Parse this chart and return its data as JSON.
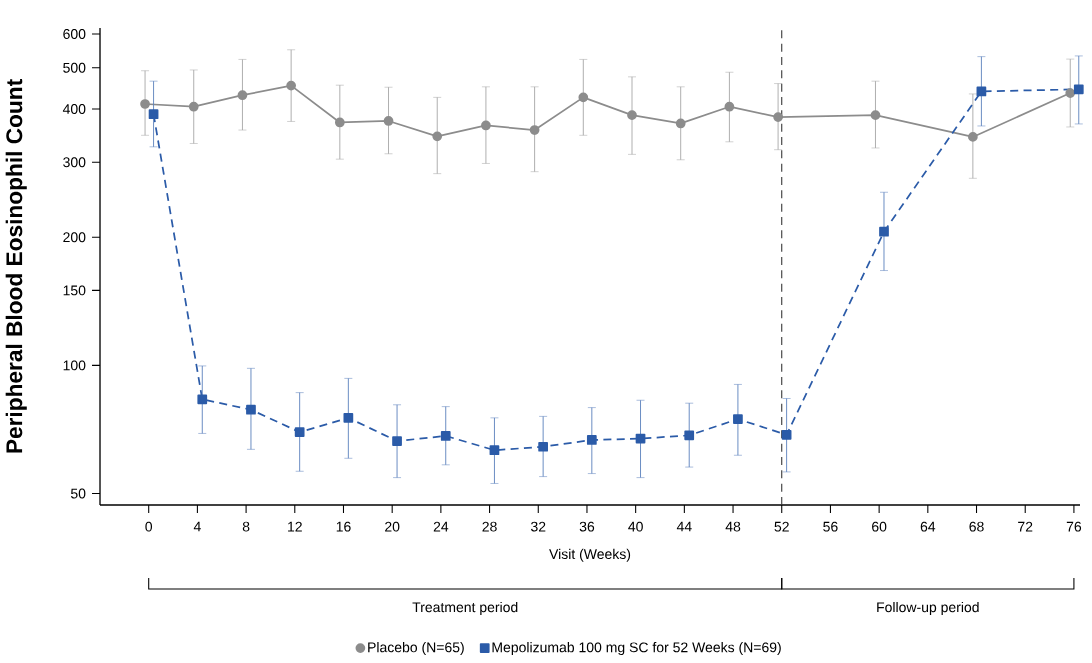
{
  "chart_data": {
    "type": "line",
    "xlabel": "Visit (Weeks)",
    "ylabel": "Peripheral Blood Eosinophil Count",
    "log": "y",
    "xlim": [
      -4,
      76.5
    ],
    "xticks": [
      0,
      4,
      8,
      12,
      16,
      20,
      24,
      28,
      32,
      36,
      40,
      44,
      48,
      52,
      56,
      60,
      64,
      68,
      72,
      76
    ],
    "ylim": [
      47,
      620
    ],
    "yticks": [
      50,
      100,
      150,
      200,
      300,
      400,
      500,
      600
    ],
    "legend": "bottom",
    "series": [
      {
        "name": "Placebo (N=65)",
        "color": "#8c8c8c",
        "marker": "circle",
        "line_style": "solid",
        "x": [
          -0.3,
          3.7,
          7.7,
          11.7,
          15.7,
          19.7,
          23.7,
          27.7,
          31.7,
          35.7,
          39.7,
          43.7,
          47.7,
          51.7,
          59.7,
          67.7,
          75.7
        ],
        "values": [
          411,
          405,
          431,
          454,
          372,
          375,
          345,
          366,
          357,
          426,
          387,
          370,
          405,
          383,
          387,
          344,
          436
        ],
        "errors": [
          [
            347,
            492
          ],
          [
            332,
            494
          ],
          [
            357,
            523
          ],
          [
            374,
            551
          ],
          [
            305,
            455
          ],
          [
            314,
            450
          ],
          [
            282,
            426
          ],
          [
            298,
            451
          ],
          [
            285,
            451
          ],
          [
            347,
            523
          ],
          [
            313,
            476
          ],
          [
            304,
            451
          ],
          [
            335,
            488
          ],
          [
            321,
            459
          ],
          [
            324,
            465
          ],
          [
            275,
            434
          ],
          [
            363,
            524
          ]
        ]
      },
      {
        "name": "Mepolizumab 100 mg SC for 52 Weeks (N=69)",
        "color": "#2b5ba8",
        "marker": "square",
        "line_style": "dashed",
        "x": [
          0.4,
          4.4,
          8.4,
          12.4,
          16.4,
          20.4,
          24.4,
          28.4,
          32.4,
          36.4,
          40.4,
          44.4,
          48.4,
          52.4,
          60.4,
          68.4,
          76.4
        ],
        "values": [
          389,
          83.2,
          78.7,
          69.7,
          75.3,
          66.4,
          68.3,
          63.2,
          64.4,
          66.8,
          67.3,
          68.5,
          74.8,
          68.7,
          206,
          440,
          445
        ],
        "errors": [
          [
            326,
            465
          ],
          [
            69.2,
            99.7
          ],
          [
            63.5,
            98.4
          ],
          [
            56.4,
            86.3
          ],
          [
            60.5,
            93.2
          ],
          [
            54.5,
            80.8
          ],
          [
            58.4,
            80.0
          ],
          [
            52.8,
            75.3
          ],
          [
            54.8,
            75.9
          ],
          [
            55.7,
            79.6
          ],
          [
            54.5,
            82.8
          ],
          [
            57.7,
            81.5
          ],
          [
            61.5,
            90.2
          ],
          [
            56.2,
            83.6
          ],
          [
            167,
            255
          ],
          [
            365,
            531
          ],
          [
            369,
            533
          ]
        ]
      }
    ],
    "ref_lines": [
      {
        "axis": "x",
        "value": 52,
        "color": "#333333",
        "line_style": "dashed"
      }
    ],
    "annotations": [
      "Treatment period",
      "Follow-up period"
    ]
  }
}
